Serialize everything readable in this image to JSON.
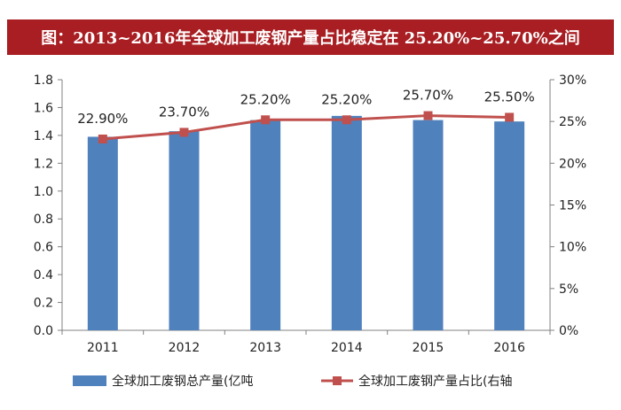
{
  "title": "图：2013~2016年全球加工废钢产量占比稳定在 25.20%~25.70%之间",
  "chart_data": {
    "type": "bar",
    "categories": [
      "2011",
      "2012",
      "2013",
      "2014",
      "2015",
      "2016"
    ],
    "series": [
      {
        "name": "全球加工废钢总产量(亿吨",
        "type": "bar",
        "axis": "left",
        "values": [
          1.39,
          1.43,
          1.51,
          1.54,
          1.51,
          1.5
        ],
        "color": "#4f81bd"
      },
      {
        "name": "全球加工废钢产量占比(右轴",
        "type": "line",
        "axis": "right",
        "values": [
          22.9,
          23.7,
          25.2,
          25.2,
          25.7,
          25.5
        ],
        "labels": [
          "22.90%",
          "23.70%",
          "25.20%",
          "25.20%",
          "25.70%",
          "25.50%"
        ],
        "color": "#c0504d"
      }
    ],
    "ylim_left": [
      0,
      1.8
    ],
    "yticks_left": [
      "0.0",
      "0.2",
      "0.4",
      "0.6",
      "0.8",
      "1.0",
      "1.2",
      "1.4",
      "1.6",
      "1.8"
    ],
    "ylim_right": [
      0,
      30
    ],
    "yticks_right": [
      "0%",
      "5%",
      "10%",
      "15%",
      "20%",
      "25%",
      "30%"
    ],
    "grid": false,
    "legend": "bottom"
  }
}
